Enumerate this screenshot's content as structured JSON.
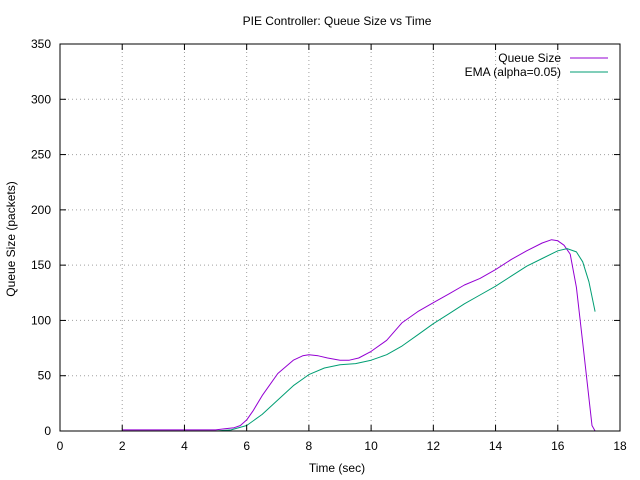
{
  "chart_data": {
    "type": "line",
    "title": "PIE Controller: Queue Size vs Time",
    "xlabel": "Time (sec)",
    "ylabel": "Queue Size (packets)",
    "xlim": [
      0,
      18
    ],
    "ylim": [
      0,
      350
    ],
    "xticks": [
      0,
      2,
      4,
      6,
      8,
      10,
      12,
      14,
      16,
      18
    ],
    "yticks": [
      0,
      50,
      100,
      150,
      200,
      250,
      300,
      350
    ],
    "grid": true,
    "legend_position": "top-right",
    "series": [
      {
        "name": "Queue Size",
        "color": "#9400d3",
        "x": [
          2.0,
          4.7,
          5.0,
          5.3,
          5.6,
          5.8,
          6.0,
          6.2,
          6.5,
          7.0,
          7.5,
          7.8,
          8.0,
          8.3,
          8.6,
          9.0,
          9.3,
          9.6,
          10.0,
          10.5,
          11.0,
          11.5,
          12.0,
          12.5,
          13.0,
          13.5,
          14.0,
          14.5,
          15.0,
          15.5,
          15.8,
          16.0,
          16.2,
          16.4,
          16.6,
          16.8,
          17.0,
          17.1,
          17.2
        ],
        "y": [
          1,
          1,
          1,
          2,
          3,
          5,
          10,
          18,
          32,
          52,
          64,
          68,
          69,
          68,
          66,
          64,
          64,
          66,
          72,
          82,
          98,
          108,
          116,
          124,
          132,
          138,
          146,
          155,
          163,
          170,
          173,
          172,
          168,
          160,
          130,
          80,
          30,
          5,
          0
        ]
      },
      {
        "name": "EMA (alpha=0.05)",
        "color": "#009e73",
        "x": [
          2.0,
          5.0,
          5.5,
          6.0,
          6.5,
          7.0,
          7.5,
          8.0,
          8.5,
          9.0,
          9.5,
          10.0,
          10.5,
          11.0,
          11.5,
          12.0,
          12.5,
          13.0,
          13.5,
          14.0,
          14.5,
          15.0,
          15.5,
          16.0,
          16.3,
          16.6,
          16.8,
          17.0,
          17.2
        ],
        "y": [
          0,
          0,
          1,
          5,
          15,
          28,
          41,
          51,
          57,
          60,
          61,
          64,
          69,
          77,
          87,
          97,
          106,
          115,
          123,
          131,
          140,
          149,
          156,
          163,
          165,
          162,
          153,
          135,
          108
        ]
      }
    ]
  }
}
